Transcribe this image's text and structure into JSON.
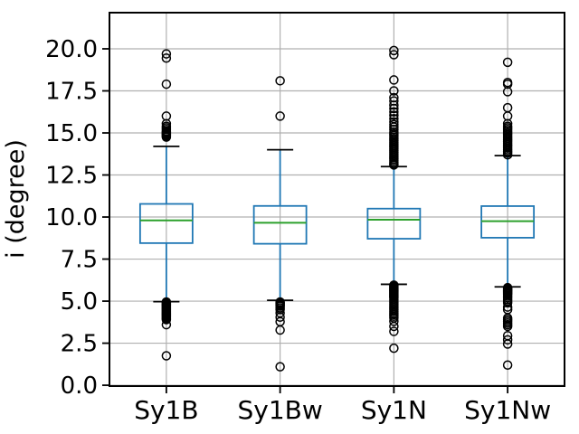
{
  "chart_data": {
    "type": "boxplot",
    "title": "",
    "xlabel": "",
    "ylabel": "i (degree)",
    "categories": [
      "Sy1B",
      "Sy1Bw",
      "Sy1N",
      "Sy1Nw"
    ],
    "ylim": [
      -0.05,
      22.15
    ],
    "yticks": [
      0.0,
      2.5,
      5.0,
      7.5,
      10.0,
      12.5,
      15.0,
      17.5,
      20.0
    ],
    "ytick_labels": [
      "0.0",
      "2.5",
      "5.0",
      "7.5",
      "10.0",
      "12.5",
      "15.0",
      "17.5",
      "20.0"
    ],
    "grid": true,
    "legend": null,
    "colors": {
      "box": "#1f77b4",
      "whisker": "#1f77b4",
      "cap": "#000000",
      "median": "#2ca02c",
      "flier_edge": "#000000",
      "grid": "#b0b0b0",
      "spine": "#000000",
      "text": "#000000",
      "background": "#ffffff"
    },
    "series": [
      {
        "name": "Sy1B",
        "q1": 8.45,
        "median": 9.8,
        "q3": 10.78,
        "whisker_low": 4.97,
        "whisker_high": 14.2,
        "fliers_high": [
          19.7,
          19.45,
          17.9,
          16.0,
          15.55,
          15.4,
          15.3,
          15.2,
          15.1,
          15.05,
          15.0,
          14.95,
          14.9,
          14.85,
          14.8,
          14.75
        ],
        "fliers_low": [
          4.95,
          4.9,
          4.85,
          4.8,
          4.78,
          4.75,
          4.7,
          4.65,
          4.6,
          4.55,
          4.5,
          4.45,
          4.4,
          4.35,
          4.3,
          4.25,
          4.2,
          4.15,
          4.1,
          4.05,
          4.0,
          3.95,
          3.9,
          3.6,
          1.75
        ]
      },
      {
        "name": "Sy1Bw",
        "q1": 8.41,
        "median": 9.66,
        "q3": 10.66,
        "whisker_low": 5.05,
        "whisker_high": 14.0,
        "fliers_high": [
          18.1,
          16.0
        ],
        "fliers_low": [
          4.95,
          4.9,
          4.85,
          4.8,
          4.75,
          4.7,
          4.6,
          4.5,
          4.3,
          4.05,
          3.78,
          3.28,
          1.1
        ]
      },
      {
        "name": "Sy1N",
        "q1": 8.71,
        "median": 9.84,
        "q3": 10.5,
        "whisker_low": 6.0,
        "whisker_high": 13.0,
        "fliers_high": [
          19.9,
          19.65,
          18.15,
          17.5,
          17.1,
          16.9,
          16.65,
          16.45,
          16.25,
          16.05,
          15.85,
          15.65,
          15.5,
          15.35,
          15.2,
          15.05,
          14.95,
          14.85,
          14.75,
          14.65,
          14.55,
          14.45,
          14.35,
          14.25,
          14.15,
          14.05,
          13.95,
          13.85,
          13.75,
          13.65,
          13.55,
          13.45,
          13.35,
          13.25,
          13.15,
          13.1
        ],
        "fliers_low": [
          5.95,
          5.9,
          5.85,
          5.8,
          5.75,
          5.7,
          5.65,
          5.6,
          5.55,
          5.5,
          5.45,
          5.4,
          5.35,
          5.3,
          5.25,
          5.2,
          5.1,
          5.0,
          4.9,
          4.8,
          4.7,
          4.6,
          4.5,
          4.4,
          4.3,
          4.2,
          4.1,
          4.0,
          3.8,
          3.5,
          3.2,
          2.2
        ]
      },
      {
        "name": "Sy1Nw",
        "q1": 8.77,
        "median": 9.75,
        "q3": 10.65,
        "whisker_low": 5.85,
        "whisker_high": 13.65,
        "fliers_high": [
          19.2,
          18.0,
          17.9,
          17.45,
          16.5,
          16.0,
          15.55,
          15.4,
          15.3,
          15.2,
          15.1,
          15.0,
          14.9,
          14.8,
          14.7,
          14.6,
          14.5,
          14.4,
          14.3,
          14.2,
          14.1,
          14.0,
          13.9,
          13.8,
          13.7
        ],
        "fliers_low": [
          5.8,
          5.75,
          5.7,
          5.65,
          5.6,
          5.55,
          5.5,
          5.45,
          5.4,
          5.3,
          5.2,
          5.1,
          5.0,
          4.9,
          4.65,
          4.5,
          4.0,
          3.9,
          3.8,
          3.7,
          3.6,
          3.5,
          2.95,
          2.7,
          2.45,
          1.2
        ]
      }
    ]
  }
}
